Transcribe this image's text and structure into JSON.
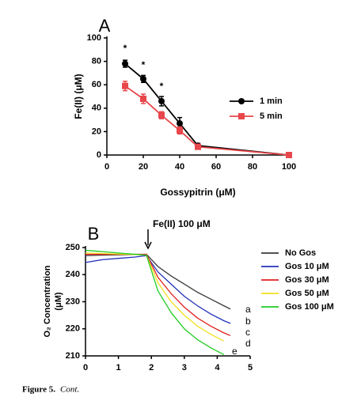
{
  "chart_data": [
    {
      "type": "line",
      "panel": "A",
      "xlabel": "Gossypitrin (μM)",
      "ylabel": "Fe(II) (μM)",
      "x": [
        10,
        20,
        30,
        40,
        50,
        100
      ],
      "xlim": [
        0,
        100
      ],
      "xticks": [
        0,
        20,
        40,
        60,
        80,
        100
      ],
      "ylim": [
        0,
        100
      ],
      "yticks": [
        0,
        20,
        40,
        60,
        80,
        100
      ],
      "series": [
        {
          "name": "1 min",
          "color": "#000000",
          "marker": "circle",
          "values": [
            78,
            65,
            46,
            27,
            8,
            0
          ],
          "errors": [
            3,
            3,
            4,
            5,
            2,
            1
          ]
        },
        {
          "name": "5 min",
          "color": "#e8474b",
          "marker": "square",
          "values": [
            59,
            48,
            34,
            21,
            7,
            0
          ],
          "errors": [
            4,
            4,
            3,
            3,
            2,
            1
          ]
        }
      ],
      "annotations": [
        "*",
        "*",
        "*"
      ]
    },
    {
      "type": "line",
      "panel": "B",
      "ylabel": [
        "O₂ Concentration",
        "(μM)"
      ],
      "x": [
        0,
        0.5,
        1,
        1.5,
        1.85,
        2.2,
        2.6,
        3,
        3.4,
        3.8,
        4.2,
        4.4
      ],
      "xlim": [
        0,
        5
      ],
      "xticks": [
        0,
        1,
        2,
        3,
        4,
        5
      ],
      "ylim": [
        210,
        250
      ],
      "yticks": [
        210,
        220,
        230,
        240,
        250
      ],
      "series": [
        {
          "name": "No Gos",
          "color": "#3a3a3a",
          "values": [
            247,
            247.2,
            247.3,
            247.4,
            247.5,
            243,
            239.5,
            236.5,
            233.5,
            231,
            228.5,
            227.3
          ]
        },
        {
          "name": "Gos 10 μM",
          "color": "#2233bb",
          "values": [
            244.5,
            245.5,
            246,
            246.5,
            247,
            241,
            236.5,
            232,
            228.5,
            225.5,
            223,
            222
          ]
        },
        {
          "name": "Gos 30 μM",
          "color": "#e02020",
          "values": [
            247.5,
            247.5,
            247.5,
            247.5,
            247.5,
            239,
            233,
            228,
            224,
            221,
            218.5,
            217.5
          ]
        },
        {
          "name": "Gos 50 μM",
          "color": "#f2e020",
          "values": [
            248,
            247.8,
            247.6,
            247.4,
            247.2,
            237,
            230,
            225,
            221,
            218,
            215.5,
            null
          ]
        },
        {
          "name": "Gos 100 μM",
          "color": "#22cc22",
          "values": [
            249,
            248.5,
            248,
            247.5,
            247.2,
            234,
            226,
            220,
            216,
            213,
            210.5,
            null
          ]
        }
      ],
      "annotations": [
        "Fe(II) 100 μM",
        "a",
        "b",
        "c",
        "d",
        "e"
      ]
    }
  ],
  "caption": {
    "label": "Figure 5.",
    "text": "Cont."
  }
}
